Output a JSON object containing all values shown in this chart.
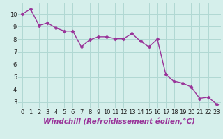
{
  "x": [
    0,
    1,
    2,
    3,
    4,
    5,
    6,
    7,
    8,
    9,
    10,
    11,
    12,
    13,
    14,
    15,
    16,
    17,
    18,
    19,
    20,
    21,
    22,
    23
  ],
  "y": [
    10.0,
    10.4,
    9.1,
    9.3,
    8.9,
    8.65,
    8.65,
    7.4,
    7.95,
    8.2,
    8.2,
    8.05,
    8.05,
    8.45,
    7.85,
    7.4,
    8.0,
    5.2,
    4.65,
    4.5,
    4.2,
    3.3,
    3.4,
    2.85
  ],
  "line_color": "#993399",
  "marker": "D",
  "marker_size": 2.5,
  "bg_color": "#d5efeb",
  "grid_color": "#b0d8d3",
  "xlabel": "Windchill (Refroidissement éolien,°C)",
  "xlim": [
    -0.5,
    23.5
  ],
  "ylim": [
    2.5,
    10.9
  ],
  "yticks": [
    3,
    4,
    5,
    6,
    7,
    8,
    9,
    10
  ],
  "xticks": [
    0,
    1,
    2,
    3,
    4,
    5,
    6,
    7,
    8,
    9,
    10,
    11,
    12,
    13,
    14,
    15,
    16,
    17,
    18,
    19,
    20,
    21,
    22,
    23
  ],
  "tick_fontsize": 6,
  "xlabel_fontsize": 7.5,
  "line_width": 1.0
}
